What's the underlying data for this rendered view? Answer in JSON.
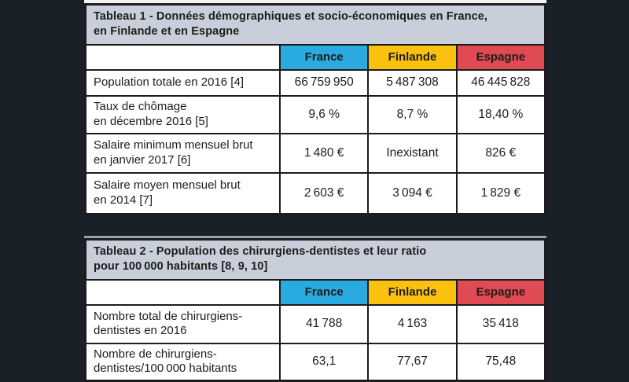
{
  "colors": {
    "background": "#1a2028",
    "titlebar": "#c8cfda",
    "france": "#29abe2",
    "finlande": "#fcc10e",
    "espagne": "#e04a52",
    "border": "#1c1c1c",
    "cell_background": "#ffffff"
  },
  "tables": [
    {
      "title_line1": "Tableau 1 - Données démographiques et socio-économiques en France,",
      "title_line2": "en Finlande et en Espagne",
      "columns": [
        "France",
        "Finlande",
        "Espagne"
      ],
      "rows": [
        {
          "label_line1": "Population totale en 2016 [4]",
          "label_line2": "",
          "values": [
            "66 759 950",
            "5 487 308",
            "46 445 828"
          ]
        },
        {
          "label_line1": "Taux de chômage",
          "label_line2": "en décembre 2016 [5]",
          "values": [
            "9,6 %",
            "8,7 %",
            "18,40 %"
          ]
        },
        {
          "label_line1": "Salaire minimum mensuel brut",
          "label_line2": "en janvier 2017 [6]",
          "values": [
            "1 480 €",
            "Inexistant",
            "826 €"
          ]
        },
        {
          "label_line1": "Salaire moyen mensuel brut",
          "label_line2": "en 2014 [7]",
          "values": [
            "2 603 €",
            "3 094 €",
            "1 829 €"
          ]
        }
      ]
    },
    {
      "title_line1": "Tableau 2 - Population des chirurgiens-dentistes et leur ratio",
      "title_line2": "pour 100 000 habitants [8, 9, 10]",
      "columns": [
        "France",
        "Finlande",
        "Espagne"
      ],
      "rows": [
        {
          "label_line1": "Nombre total de chirurgiens-",
          "label_line2": "dentistes en 2016",
          "values": [
            "41 788",
            "4 163",
            "35 418"
          ]
        },
        {
          "label_line1": "Nombre de chirurgiens-",
          "label_line2": "dentistes/100 000 habitants",
          "values": [
            "63,1",
            "77,67",
            "75,48"
          ]
        }
      ]
    }
  ],
  "chart_data": [
    {
      "type": "table",
      "title": "Tableau 1 - Données démographiques et socio-économiques en France, en Finlande et en Espagne",
      "categories": [
        "France",
        "Finlande",
        "Espagne"
      ],
      "series": [
        {
          "name": "Population totale en 2016 [4]",
          "values": [
            66759950,
            5487308,
            46445828
          ]
        },
        {
          "name": "Taux de chômage en décembre 2016 [5] (%)",
          "values": [
            9.6,
            8.7,
            18.4
          ]
        },
        {
          "name": "Salaire minimum mensuel brut en janvier 2017 [6] (€)",
          "values": [
            1480,
            null,
            826
          ]
        },
        {
          "name": "Salaire moyen mensuel brut en 2014 [7] (€)",
          "values": [
            2603,
            3094,
            1829
          ]
        }
      ]
    },
    {
      "type": "table",
      "title": "Tableau 2 - Population des chirurgiens-dentistes et leur ratio pour 100 000 habitants [8, 9, 10]",
      "categories": [
        "France",
        "Finlande",
        "Espagne"
      ],
      "series": [
        {
          "name": "Nombre total de chirurgiens-dentistes en 2016",
          "values": [
            41788,
            4163,
            35418
          ]
        },
        {
          "name": "Nombre de chirurgiens-dentistes/100 000 habitants",
          "values": [
            63.1,
            77.67,
            75.48
          ]
        }
      ]
    }
  ]
}
